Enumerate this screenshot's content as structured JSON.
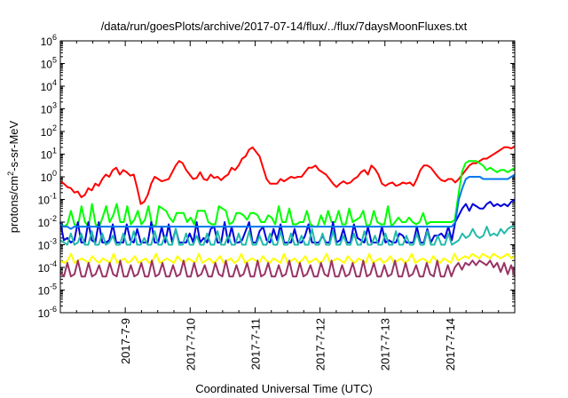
{
  "chart_data": {
    "type": "line",
    "title": "/data/run/goesPlots/archive/2017-07-14/flux/../flux/7daysMoonFluxes.txt",
    "xlabel": "Coordinated Universal Time (UTC)",
    "ylabel": "protons/cm²-s-sr-MeV",
    "yscale": "log",
    "ylim": [
      1e-06,
      1000000.0
    ],
    "xlim": [
      "2017-07-08 00:00",
      "2017-07-15 00:00"
    ],
    "x_ticks": [
      "2017-7-9",
      "2017-7-10",
      "2017-7-11",
      "2017-7-12",
      "2017-7-13",
      "2017-7-14"
    ],
    "y_ticks": [
      {
        "base": "10",
        "exp": "6"
      },
      {
        "base": "10",
        "exp": "5"
      },
      {
        "base": "10",
        "exp": "4"
      },
      {
        "base": "10",
        "exp": "3"
      },
      {
        "base": "10",
        "exp": "2"
      },
      {
        "base": "10",
        "exp": "1"
      },
      {
        "base": "10",
        "exp": "0"
      },
      {
        "base": "10",
        "exp": "-1"
      },
      {
        "base": "10",
        "exp": "-2"
      },
      {
        "base": "10",
        "exp": "-3"
      },
      {
        "base": "10",
        "exp": "-4"
      },
      {
        "base": "10",
        "exp": "-5"
      },
      {
        "base": "10",
        "exp": "-6"
      }
    ],
    "grid": false,
    "legend": "none",
    "series": [
      {
        "color": "#ff0000",
        "log10_values": [
          -0.2,
          -0.3,
          -0.45,
          -0.5,
          -0.7,
          -0.65,
          -0.9,
          -0.8,
          -0.5,
          -0.6,
          -0.3,
          -0.4,
          -0.1,
          0.1,
          0.0,
          0.3,
          0.4,
          0.1,
          0.3,
          0.2,
          0.05,
          0.1,
          -0.5,
          -1.2,
          -1.1,
          -0.8,
          -0.3,
          0.0,
          -0.1,
          -0.2,
          -0.15,
          -0.1,
          0.2,
          0.5,
          0.7,
          0.6,
          0.3,
          0.1,
          -0.1,
          -0.05,
          0.2,
          -0.1,
          -0.15,
          0.1,
          -0.05,
          0.0,
          -0.15,
          0.0,
          0.1,
          0.4,
          0.3,
          0.5,
          0.8,
          0.9,
          1.2,
          1.3,
          1.1,
          0.9,
          0.4,
          -0.1,
          -0.3,
          -0.3,
          -0.3,
          -0.1,
          -0.2,
          -0.1,
          0.0,
          -0.05,
          0.0,
          0.0,
          0.2,
          0.4,
          0.4,
          0.5,
          0.3,
          0.2,
          0.1,
          -0.1,
          -0.3,
          -0.45,
          -0.3,
          -0.2,
          -0.3,
          -0.25,
          -0.1,
          0.0,
          0.2,
          0.3,
          0.1,
          0.5,
          0.35,
          0.1,
          -0.3,
          -0.4,
          -0.3,
          -0.25,
          -0.4,
          -0.35,
          -0.25,
          -0.3,
          -0.25,
          -0.4,
          -0.1,
          0.3,
          0.5,
          0.5,
          0.4,
          0.2,
          0.0,
          -0.15,
          -0.2,
          -0.1,
          -0.1,
          -0.25,
          -0.1,
          0.1,
          0.3,
          0.5,
          0.6,
          0.6,
          0.7,
          0.8,
          0.8,
          0.9,
          1.0,
          1.1,
          1.2,
          1.3,
          1.3,
          1.25,
          1.35
        ]
      },
      {
        "color": "#00ff00",
        "log10_values": [
          -2.1,
          -2.2,
          -2.1,
          -1.5,
          -2.1,
          -2.2,
          -1.3,
          -2.0,
          -2.2,
          -1.2,
          -2.1,
          -2.2,
          -1.8,
          -1.3,
          -2.0,
          -1.7,
          -1.2,
          -2.0,
          -2.0,
          -1.3,
          -2.1,
          -1.9,
          -1.5,
          -2.1,
          -1.9,
          -1.3,
          -2.1,
          -2.2,
          -1.3,
          -1.4,
          -1.5,
          -1.8,
          -2.0,
          -1.6,
          -1.6,
          -1.6,
          -2.0,
          -1.8,
          -2.1,
          -1.5,
          -1.5,
          -1.5,
          -2.0,
          -2.1,
          -2.1,
          -1.3,
          -1.4,
          -1.5,
          -2.1,
          -2.0,
          -1.6,
          -1.6,
          -1.7,
          -1.9,
          -1.6,
          -1.6,
          -1.7,
          -2.0,
          -2.0,
          -1.7,
          -1.8,
          -2.1,
          -1.3,
          -2.0,
          -2.0,
          -1.4,
          -2.1,
          -2.1,
          -2.0,
          -2.0,
          -1.5,
          -2.1,
          -2.2,
          -2.2,
          -1.7,
          -2.1,
          -1.5,
          -2.0,
          -2.0,
          -1.5,
          -2.1,
          -2.1,
          -1.4,
          -2.0,
          -1.9,
          -1.8,
          -1.5,
          -2.2,
          -2.1,
          -1.5,
          -2.0,
          -2.1,
          -2.1,
          -1.3,
          -2.2,
          -2.0,
          -1.8,
          -2.0,
          -2.0,
          -1.8,
          -2.0,
          -2.1,
          -2.0,
          -1.6,
          -2.1,
          -2.0,
          -2.0,
          -2.0,
          -2.0,
          -2.0,
          -2.0,
          -2.0,
          -1.9,
          -0.8,
          0.2,
          0.6,
          0.7,
          0.7,
          0.7,
          0.6,
          0.5,
          0.3,
          0.4,
          0.3,
          0.2,
          0.3,
          0.3,
          0.2,
          0.3,
          0.4
        ]
      },
      {
        "color": "#0000dd",
        "log10_values": [
          -2.0,
          -2.8,
          -2.7,
          -2.9,
          -2.8,
          -2.0,
          -2.9,
          -2.9,
          -2.0,
          -2.8,
          -2.9,
          -2.0,
          -2.9,
          -2.9,
          -2.8,
          -2.1,
          -2.9,
          -2.9,
          -2.9,
          -2.1,
          -2.8,
          -2.9,
          -2.3,
          -2.9,
          -2.9,
          -2.9,
          -2.0,
          -2.9,
          -2.9,
          -2.2,
          -2.9,
          -2.1,
          -2.9,
          -2.3,
          -2.9,
          -2.9,
          -2.9,
          -2.5,
          -2.9,
          -2.0,
          -2.9,
          -2.7,
          -2.9,
          -2.3,
          -2.2,
          -2.9,
          -2.9,
          -2.0,
          -2.9,
          -2.2,
          -2.9,
          -2.9,
          -2.8,
          -2.4,
          -2.0,
          -2.9,
          -2.9,
          -2.4,
          -2.2,
          -2.8,
          -2.9,
          -2.3,
          -2.8,
          -2.1,
          -2.9,
          -2.9,
          -2.9,
          -2.3,
          -2.9,
          -2.9,
          -2.6,
          -2.1,
          -2.9,
          -2.9,
          -2.9,
          -2.6,
          -2.9,
          -2.9,
          -2.0,
          -2.9,
          -2.8,
          -2.3,
          -2.9,
          -2.9,
          -2.1,
          -2.7,
          -2.8,
          -2.9,
          -2.2,
          -2.9,
          -2.9,
          -2.9,
          -2.2,
          -2.9,
          -2.8,
          -2.9,
          -2.9,
          -2.5,
          -2.6,
          -2.9,
          -2.9,
          -2.9,
          -2.2,
          -2.9,
          -2.9,
          -2.3,
          -2.9,
          -2.6,
          -2.6,
          -2.5,
          -2.7,
          -2.2,
          -2.8,
          -2.0,
          -1.7,
          -1.4,
          -1.2,
          -1.5,
          -1.2,
          -1.3,
          -1.4,
          -1.4,
          -1.2,
          -1.1,
          -1.3,
          -1.2,
          -1.3,
          -1.2,
          -1.3,
          -1.1,
          -1.0
        ]
      },
      {
        "color": "#0077ee",
        "log10_values": [
          -2.1,
          -2.2,
          -2.2,
          -2.3,
          -2.2,
          -2.2,
          -2.2,
          -2.2,
          -2.2,
          -2.2,
          -2.2,
          -2.2,
          -2.2,
          -2.2,
          -2.2,
          -2.2,
          -2.2,
          -2.2,
          -2.2,
          -2.2,
          -2.2,
          -2.2,
          -2.2,
          -2.2,
          -2.2,
          -2.2,
          -2.2,
          -2.2,
          -2.2,
          -2.2,
          -2.2,
          -2.2,
          -2.2,
          -2.2,
          -2.2,
          -2.2,
          -2.2,
          -2.2,
          -2.2,
          -2.2,
          -2.2,
          -2.2,
          -2.2,
          -2.2,
          -2.2,
          -2.2,
          -2.2,
          -2.2,
          -2.2,
          -2.2,
          -2.2,
          -2.2,
          -2.2,
          -2.2,
          -2.2,
          -2.2,
          -2.2,
          -2.2,
          -2.2,
          -2.2,
          -2.2,
          -2.2,
          -2.2,
          -2.2,
          -2.2,
          -2.2,
          -2.2,
          -2.2,
          -2.2,
          -2.2,
          -2.2,
          -2.2,
          -2.2,
          -2.2,
          -2.2,
          -2.2,
          -2.2,
          -2.2,
          -2.2,
          -2.2,
          -2.2,
          -2.2,
          -2.2,
          -2.2,
          -2.2,
          -2.2,
          -2.2,
          -2.2,
          -2.2,
          -2.2,
          -2.2,
          -2.2,
          -2.2,
          -2.2,
          -2.2,
          -2.2,
          -2.2,
          -2.2,
          -2.2,
          -2.2,
          -2.2,
          -2.2,
          -2.2,
          -2.2,
          -2.2,
          -2.2,
          -2.2,
          -2.2,
          -2.2,
          -2.2,
          -2.2,
          -2.2,
          -2.2,
          -2.0,
          -1.0,
          -0.5,
          -0.1,
          0.0,
          0.0,
          0.0,
          0.0,
          -0.1,
          -0.1,
          -0.1,
          -0.1,
          -0.1,
          -0.1,
          -0.1,
          -0.1,
          0.0,
          0.1
        ]
      },
      {
        "color": "#22bbaa",
        "log10_values": [
          -2.8,
          -2.9,
          -3.0,
          -2.5,
          -3.0,
          -2.9,
          -2.5,
          -3.0,
          -3.0,
          -2.4,
          -3.0,
          -3.0,
          -2.5,
          -3.0,
          -2.9,
          -2.6,
          -3.0,
          -3.0,
          -2.5,
          -3.0,
          -3.0,
          -2.4,
          -3.0,
          -3.0,
          -2.7,
          -3.0,
          -3.0,
          -2.4,
          -3.0,
          -3.0,
          -2.6,
          -3.0,
          -3.0,
          -2.3,
          -3.0,
          -3.0,
          -2.5,
          -3.0,
          -3.0,
          -2.6,
          -3.0,
          -3.0,
          -2.5,
          -3.0,
          -3.0,
          -2.4,
          -3.0,
          -3.0,
          -2.6,
          -3.0,
          -3.0,
          -2.5,
          -3.0,
          -3.0,
          -2.4,
          -3.0,
          -3.0,
          -2.6,
          -3.0,
          -3.0,
          -2.5,
          -3.0,
          -3.0,
          -2.4,
          -3.0,
          -3.0,
          -2.5,
          -3.0,
          -3.0,
          -2.6,
          -3.0,
          -3.0,
          -2.3,
          -3.0,
          -3.0,
          -2.5,
          -3.0,
          -3.0,
          -2.4,
          -3.0,
          -3.0,
          -2.6,
          -3.0,
          -3.0,
          -2.5,
          -3.0,
          -3.0,
          -2.4,
          -3.0,
          -3.0,
          -2.6,
          -3.0,
          -3.0,
          -2.5,
          -3.0,
          -3.0,
          -2.4,
          -3.0,
          -3.0,
          -2.6,
          -3.0,
          -3.0,
          -2.5,
          -3.0,
          -3.0,
          -2.4,
          -3.0,
          -3.0,
          -2.6,
          -3.0,
          -3.0,
          -2.5,
          -3.0,
          -2.9,
          -2.8,
          -2.5,
          -2.7,
          -2.6,
          -2.3,
          -2.6,
          -2.7,
          -2.6,
          -2.2,
          -2.6,
          -2.5,
          -2.6,
          -2.3,
          -2.5,
          -2.3,
          -2.2,
          -2.2
        ]
      },
      {
        "color": "#ffff00",
        "log10_values": [
          -3.7,
          -3.8,
          -3.7,
          -3.4,
          -3.8,
          -3.7,
          -3.6,
          -3.7,
          -3.8,
          -3.5,
          -3.7,
          -3.8,
          -3.6,
          -3.7,
          -3.8,
          -3.4,
          -3.8,
          -3.7,
          -3.6,
          -3.8,
          -3.7,
          -3.5,
          -3.8,
          -3.7,
          -3.6,
          -3.8,
          -3.7,
          -3.4,
          -3.8,
          -3.7,
          -3.6,
          -3.7,
          -3.8,
          -3.5,
          -3.7,
          -3.8,
          -3.6,
          -3.7,
          -3.8,
          -3.4,
          -3.8,
          -3.7,
          -3.6,
          -3.8,
          -3.7,
          -3.5,
          -3.8,
          -3.7,
          -3.6,
          -3.8,
          -3.7,
          -3.4,
          -3.8,
          -3.7,
          -3.6,
          -3.7,
          -3.8,
          -3.5,
          -3.7,
          -3.8,
          -3.6,
          -3.7,
          -3.8,
          -3.4,
          -3.8,
          -3.7,
          -3.6,
          -3.8,
          -3.7,
          -3.5,
          -3.8,
          -3.7,
          -3.6,
          -3.8,
          -3.7,
          -3.4,
          -3.8,
          -3.7,
          -3.6,
          -3.7,
          -3.8,
          -3.5,
          -3.7,
          -3.8,
          -3.6,
          -3.7,
          -3.8,
          -3.4,
          -3.8,
          -3.7,
          -3.6,
          -3.8,
          -3.7,
          -3.5,
          -3.8,
          -3.7,
          -3.6,
          -3.8,
          -3.7,
          -3.4,
          -3.8,
          -3.7,
          -3.6,
          -3.7,
          -3.8,
          -3.5,
          -3.7,
          -3.8,
          -3.6,
          -3.7,
          -3.8,
          -3.4,
          -3.7,
          -3.6,
          -3.5,
          -3.6,
          -3.4,
          -3.5,
          -3.6,
          -3.4,
          -3.5,
          -3.6,
          -3.4,
          -3.5,
          -3.6,
          -3.5,
          -3.4,
          -3.6,
          -3.5
        ]
      },
      {
        "color": "#993366",
        "log10_values": [
          -4.2,
          -4.4,
          -3.8,
          -4.4,
          -4.3,
          -3.7,
          -4.4,
          -4.4,
          -3.8,
          -4.4,
          -4.3,
          -3.9,
          -4.4,
          -4.4,
          -3.8,
          -4.3,
          -4.4,
          -3.7,
          -4.4,
          -4.4,
          -3.9,
          -4.4,
          -4.3,
          -3.8,
          -4.4,
          -4.4,
          -3.7,
          -4.4,
          -4.3,
          -3.8,
          -4.4,
          -4.4,
          -3.9,
          -4.4,
          -4.3,
          -3.7,
          -4.4,
          -4.4,
          -3.8,
          -4.4,
          -4.3,
          -3.9,
          -4.4,
          -4.4,
          -3.8,
          -4.3,
          -4.4,
          -3.7,
          -4.4,
          -4.4,
          -3.9,
          -4.4,
          -4.3,
          -3.8,
          -4.4,
          -4.4,
          -3.7,
          -4.4,
          -4.3,
          -3.8,
          -4.4,
          -4.4,
          -3.9,
          -4.4,
          -4.3,
          -3.7,
          -4.4,
          -4.4,
          -3.8,
          -4.4,
          -4.3,
          -3.9,
          -4.4,
          -4.4,
          -3.8,
          -4.3,
          -4.4,
          -3.7,
          -4.4,
          -4.4,
          -3.9,
          -4.4,
          -4.3,
          -3.8,
          -4.4,
          -4.4,
          -3.7,
          -4.4,
          -4.3,
          -3.8,
          -4.4,
          -4.4,
          -3.9,
          -4.4,
          -4.3,
          -3.7,
          -4.4,
          -4.4,
          -3.8,
          -4.4,
          -4.3,
          -3.9,
          -4.4,
          -4.4,
          -3.8,
          -4.3,
          -4.4,
          -3.7,
          -4.4,
          -4.4,
          -3.9,
          -4.4,
          -4.0,
          -3.8,
          -4.1,
          -3.8,
          -3.9,
          -3.7,
          -3.9,
          -3.7,
          -3.8,
          -3.9,
          -3.7,
          -4.0,
          -3.8,
          -4.2,
          -3.8,
          -4.3,
          -3.9,
          -4.4
        ]
      }
    ]
  }
}
